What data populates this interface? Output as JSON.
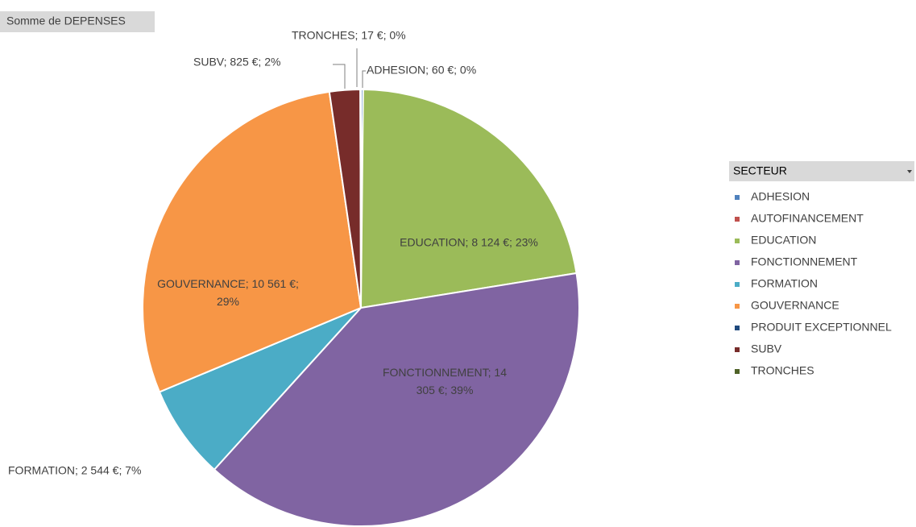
{
  "chart_data": {
    "type": "pie",
    "title": "Somme de DEPENSES",
    "legend_title": "SECTEUR",
    "legend": "right",
    "categories": [
      "ADHESION",
      "AUTOFINANCEMENT",
      "EDUCATION",
      "FONCTIONNEMENT",
      "FORMATION",
      "GOUVERNANCE",
      "PRODUIT EXCEPTIONNEL",
      "SUBV",
      "TRONCHES"
    ],
    "values": [
      60,
      null,
      8124,
      14305,
      2544,
      10561,
      null,
      825,
      17
    ],
    "value_labels": [
      "ADHESION; 60 €; 0%",
      null,
      "EDUCATION; 8 124 €; 23%",
      "FONCTIONNEMENT; 14 305 €; 39%",
      "FORMATION; 2 544 €; 7%",
      "GOUVERNANCE; 10 561 €; 29%",
      null,
      "SUBV; 825 €; 2%",
      "TRONCHES; 17 €; 0%"
    ],
    "colors": [
      "#4f81bd",
      "#c0504d",
      "#9bbb59",
      "#8064a2",
      "#4bacc6",
      "#f79646",
      "#1f497d",
      "#772c2a",
      "#4f6228"
    ]
  }
}
